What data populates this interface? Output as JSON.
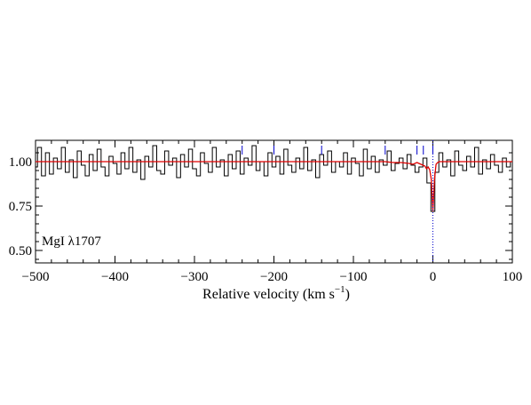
{
  "chart_data": {
    "type": "line",
    "panel_label": "MgI λ1707",
    "xlabel": "Relative velocity (km s",
    "xlabel_sup": "−1",
    "xlabel_suffix": ")",
    "ylabel": "",
    "xlim": [
      -500,
      100
    ],
    "ylim": [
      0.43,
      1.12
    ],
    "x_ticks": [
      -500,
      -400,
      -300,
      -200,
      -100,
      0,
      100
    ],
    "x_tick_labels": [
      "−500",
      "−400",
      "−300",
      "−200",
      "−100",
      "0",
      "100"
    ],
    "y_ticks": [
      0.5,
      0.75,
      1.0
    ],
    "y_tick_labels": [
      "0.50",
      "0.75",
      "1.00"
    ],
    "grid": false,
    "colors": {
      "data": "#000000",
      "model": "#e00000",
      "component_ticks": "#0000cc",
      "zero_line": "#0000cc"
    },
    "component_velocities": [
      -240,
      -200,
      -140,
      -60,
      -20,
      -12,
      0
    ],
    "series": [
      {
        "style": "step",
        "color": "#000000",
        "x": [
          -500,
          -495,
          -490,
          -485,
          -480,
          -475,
          -470,
          -465,
          -460,
          -455,
          -450,
          -445,
          -440,
          -435,
          -430,
          -425,
          -420,
          -415,
          -410,
          -405,
          -400,
          -395,
          -390,
          -385,
          -380,
          -375,
          -370,
          -365,
          -360,
          -355,
          -350,
          -345,
          -340,
          -335,
          -330,
          -325,
          -320,
          -315,
          -310,
          -305,
          -300,
          -295,
          -290,
          -285,
          -280,
          -275,
          -270,
          -265,
          -260,
          -255,
          -250,
          -245,
          -240,
          -235,
          -230,
          -225,
          -220,
          -215,
          -210,
          -205,
          -200,
          -195,
          -190,
          -185,
          -180,
          -175,
          -170,
          -165,
          -160,
          -155,
          -150,
          -145,
          -140,
          -135,
          -130,
          -125,
          -120,
          -115,
          -110,
          -105,
          -100,
          -95,
          -90,
          -85,
          -80,
          -75,
          -70,
          -65,
          -60,
          -55,
          -50,
          -45,
          -40,
          -35,
          -30,
          -25,
          -20,
          -15,
          -10,
          -5,
          0,
          5,
          10,
          15,
          20,
          25,
          30,
          35,
          40,
          45,
          50,
          55,
          60,
          65,
          70,
          75,
          80,
          85,
          90,
          95,
          100
        ],
        "y": [
          0.97,
          1.08,
          0.92,
          1.05,
          0.93,
          1.02,
          0.96,
          1.08,
          0.94,
          1.01,
          0.91,
          1.06,
          0.98,
          0.92,
          1.04,
          0.95,
          1.07,
          0.97,
          0.92,
          1.03,
          0.99,
          0.93,
          1.05,
          0.96,
          1.08,
          0.94,
          1.01,
          0.9,
          1.03,
          0.97,
          1.09,
          0.95,
          0.93,
          1.06,
          0.98,
          1.02,
          0.91,
          1.04,
          0.97,
          1.07,
          0.96,
          0.92,
          1.05,
          0.99,
          0.94,
          1.08,
          0.97,
          1.01,
          0.92,
          1.04,
          0.96,
          1.06,
          0.93,
          1.02,
          0.98,
          1.09,
          0.95,
          1.0,
          0.92,
          1.05,
          0.97,
          1.03,
          0.93,
          1.07,
          0.98,
          0.94,
          1.02,
          0.96,
          1.08,
          0.95,
          1.01,
          0.91,
          1.04,
          0.98,
          1.06,
          0.94,
          1.0,
          0.97,
          1.05,
          0.93,
          1.02,
          0.99,
          0.92,
          1.07,
          0.96,
          1.03,
          0.94,
          1.01,
          0.98,
          1.06,
          0.95,
          0.99,
          1.02,
          0.96,
          1.04,
          0.98,
          0.94,
          0.97,
          1.02,
          0.88,
          0.72,
          0.94,
          1.05,
          0.97,
          1.01,
          0.92,
          1.06,
          0.98,
          0.95,
          1.03,
          0.97,
          1.08,
          0.93,
          1.01,
          0.96,
          1.04,
          0.98,
          0.94,
          1.02,
          0.97,
          1.0
        ]
      },
      {
        "style": "line",
        "color": "#e00000",
        "x": [
          -500,
          -60,
          -50,
          -40,
          -30,
          -25,
          -20,
          -15,
          -10,
          -8,
          -6,
          -4,
          -2,
          0,
          2,
          4,
          6,
          8,
          10,
          15,
          20,
          100
        ],
        "y": [
          1.0,
          1.0,
          0.995,
          0.995,
          0.99,
          0.985,
          0.995,
          0.985,
          0.975,
          0.96,
          0.97,
          0.955,
          0.9,
          0.72,
          0.9,
          0.985,
          0.995,
          1.0,
          1.0,
          1.0,
          1.0,
          1.0
        ]
      }
    ]
  }
}
